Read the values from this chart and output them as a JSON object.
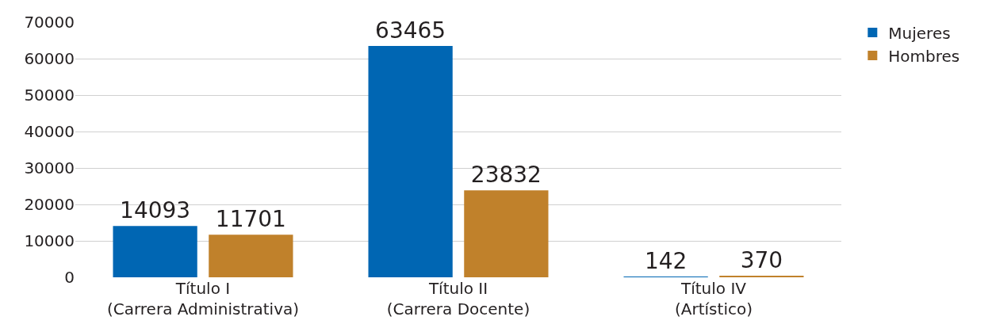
{
  "chart_data": {
    "type": "bar",
    "categories": [
      "Título I\n(Carrera Administrativa)",
      "Título II\n(Carrera Docente)",
      "Título IV\n(Artístico)"
    ],
    "series": [
      {
        "name": "Mujeres",
        "color": "#0066b3",
        "values": [
          14093,
          63465,
          142
        ]
      },
      {
        "name": "Hombres",
        "color": "#c0812b",
        "values": [
          11701,
          23832,
          370
        ]
      }
    ],
    "ylim": [
      0,
      70000
    ],
    "yticks": [
      0,
      10000,
      20000,
      30000,
      40000,
      50000,
      60000,
      70000
    ],
    "grid": "y",
    "legend": "top right",
    "data_labels": true
  }
}
